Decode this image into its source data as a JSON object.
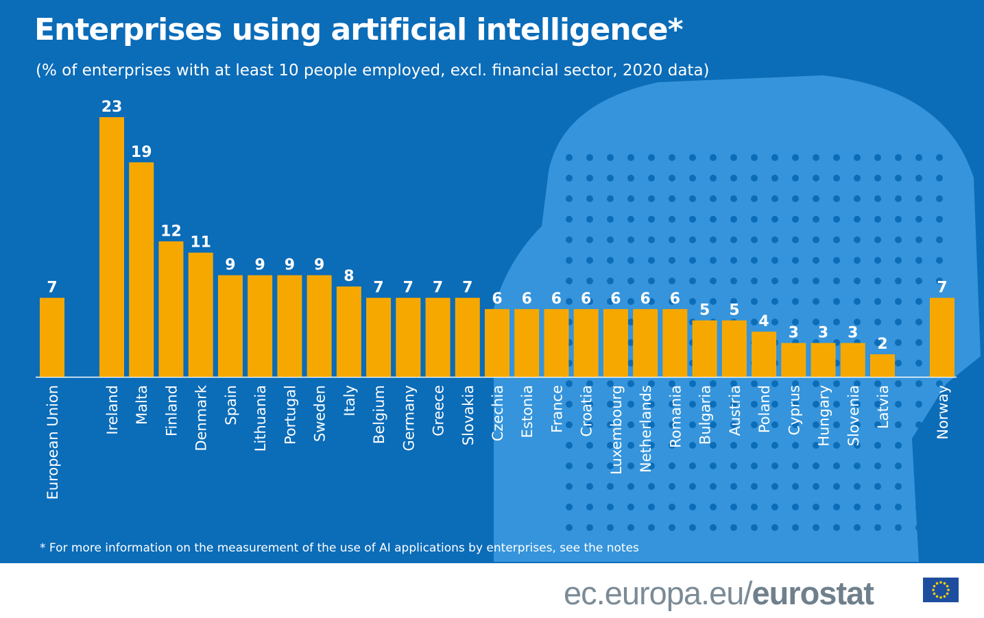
{
  "title": "Enterprises using artificial intelligence*",
  "subtitle": "(% of enterprises with at least 10 people employed, excl. financial sector, 2020 data)",
  "note": "* For more information on the measurement of the use of AI applications by enterprises, see the notes",
  "footer": {
    "prefix": "ec.europa.eu/",
    "brand": "eurostat",
    "logo": "eu-flag-icon"
  },
  "colors": {
    "background": "#0b6cb8",
    "bar": "#f7a800",
    "decoration": "#3d9be0",
    "text": "#ffffff"
  },
  "chart_data": {
    "type": "bar",
    "categories": [
      "European Union",
      "Ireland",
      "Malta",
      "Finland",
      "Denmark",
      "Spain",
      "Lithuania",
      "Portugal",
      "Sweden",
      "Italy",
      "Belgium",
      "Germany",
      "Greece",
      "Slovakia",
      "Czechia",
      "Estonia",
      "France",
      "Croatia",
      "Luxembourg",
      "Netherlands",
      "Romania",
      "Bulgaria",
      "Austria",
      "Poland",
      "Cyprus",
      "Hungary",
      "Slovenia",
      "Latvia",
      "Norway"
    ],
    "values": [
      7,
      23,
      19,
      12,
      11,
      9,
      9,
      9,
      9,
      8,
      7,
      7,
      7,
      7,
      6,
      6,
      6,
      6,
      6,
      6,
      6,
      5,
      5,
      4,
      3,
      3,
      3,
      2,
      7
    ],
    "ylim": [
      0,
      23
    ],
    "grid": false,
    "data_labels": true,
    "xlabel": "",
    "ylabel": ""
  }
}
